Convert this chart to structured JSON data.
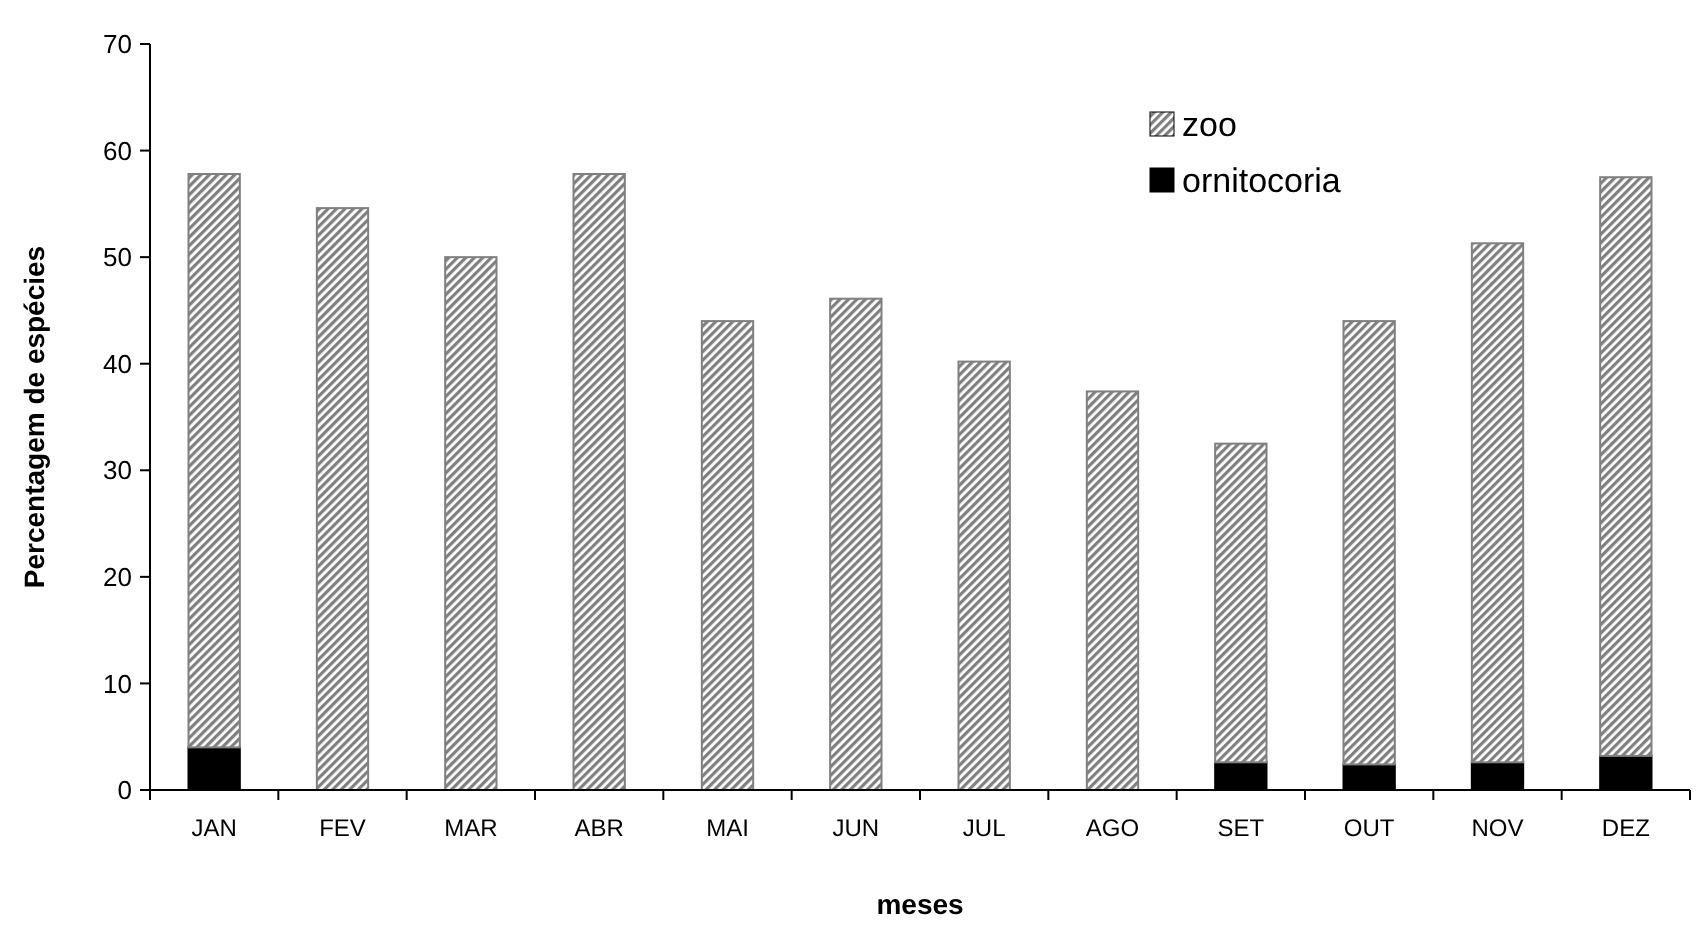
{
  "chart_data": {
    "type": "bar",
    "stacked": true,
    "xlabel": "meses",
    "ylabel": "Percentagem de espécies",
    "categories": [
      "JAN",
      "FEV",
      "MAR",
      "ABR",
      "MAI",
      "JUN",
      "JUL",
      "AGO",
      "SET",
      "OUT",
      "NOV",
      "DEZ"
    ],
    "series": [
      {
        "name": "ornitocoria",
        "color": "#000000",
        "values": [
          4.0,
          0,
          0,
          0,
          0,
          0,
          0,
          0,
          2.6,
          2.4,
          2.6,
          3.2
        ]
      },
      {
        "name": "zoo",
        "color": "#808080",
        "values": [
          53.8,
          54.6,
          50.0,
          57.8,
          44.0,
          46.1,
          40.2,
          37.4,
          29.9,
          41.6,
          48.7,
          54.3
        ]
      }
    ],
    "ylim": [
      0,
      70
    ],
    "yticks": [
      0,
      10,
      20,
      30,
      40,
      50,
      60,
      70
    ],
    "grid": false,
    "legend": "top right"
  }
}
